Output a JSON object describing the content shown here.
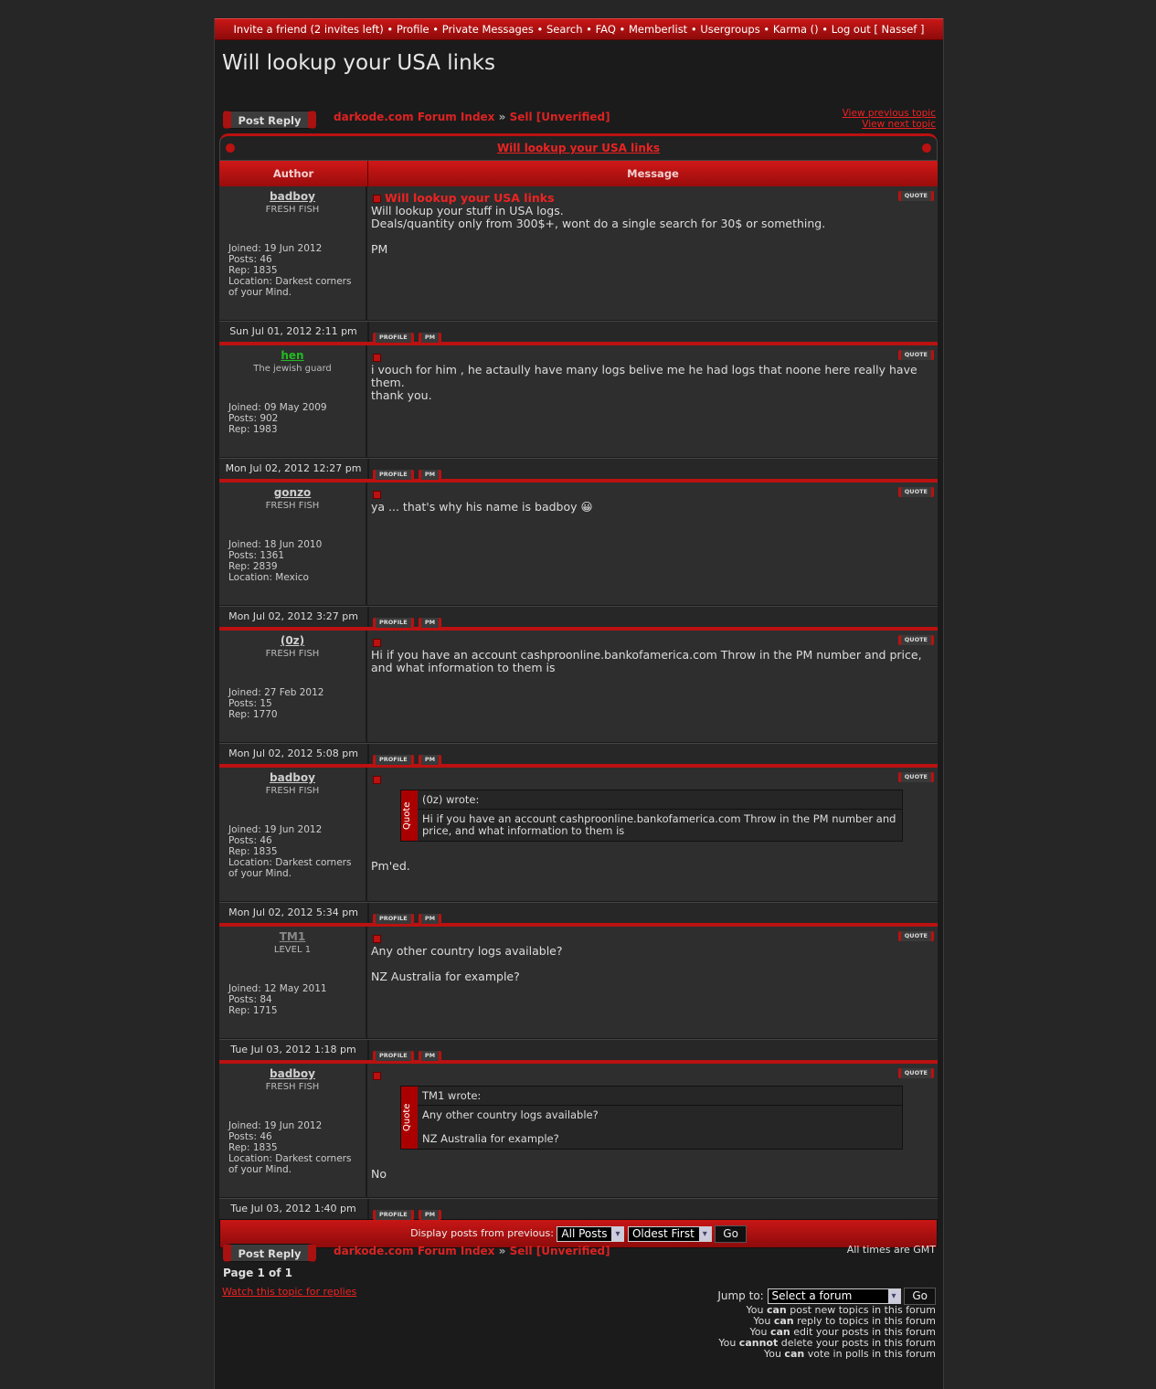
{
  "nav": {
    "items": [
      "Invite a friend (2 invites left)",
      "Profile",
      "Private Messages",
      "Search",
      "FAQ",
      "Memberlist",
      "Usergroups",
      "Karma ()",
      "Log out [ Nassef ]"
    ]
  },
  "page_title": "Will lookup your USA links",
  "post_reply": "Post Reply",
  "breadcrumb": {
    "index": "darkode.com Forum Index",
    "sep": "»",
    "forum": "Sell [Unverified]"
  },
  "view_previous": "View previous topic",
  "view_next": "View next topic",
  "topic_title": "Will lookup your USA links",
  "headers": {
    "author": "Author",
    "message": "Message"
  },
  "buttons": {
    "quote": "QUOTE",
    "profile": "PROFILE",
    "pm": "PM"
  },
  "colors": {
    "accent": "#cc1111",
    "username": "#cfcfcf",
    "hen": "#22bb22",
    "tm1": "#888888"
  },
  "posts": [
    {
      "author": "badboy",
      "color": "#cfcfcf",
      "rank": "FRESH FISH",
      "info": [
        "Joined: 19 Jun 2012",
        "Posts: 46",
        "Rep: 1835",
        "Location: Darkest corners",
        "of your Mind."
      ],
      "date": "Sun Jul 01, 2012 2:11 pm",
      "subject": "Will lookup your USA links",
      "body": [
        "Will lookup your stuff in USA logs.",
        "Deals/quantity only from 300$+, wont do a single search for 30$ or something.",
        "",
        "PM"
      ]
    },
    {
      "author": "hen",
      "color": "#22bb22",
      "rank": "The jewish guard",
      "info": [
        "Joined: 09 May 2009",
        "Posts: 902",
        "Rep: 1983"
      ],
      "date": "Mon Jul 02, 2012 12:27 pm",
      "body": [
        "i vouch for him , he actaully have many logs belive me he had logs that noone here really have them.",
        "thank you."
      ]
    },
    {
      "author": "gonzo",
      "color": "#cfcfcf",
      "rank": "FRESH FISH",
      "info": [
        "Joined: 18 Jun 2010",
        "Posts: 1361",
        "Rep: 2839",
        "Location: Mexico"
      ],
      "date": "Mon Jul 02, 2012 3:27 pm",
      "body": [
        "ya ... that's why his name is badboy 😀"
      ]
    },
    {
      "author": "(0z)",
      "color": "#cfcfcf",
      "rank": "FRESH FISH",
      "info": [
        "Joined: 27 Feb 2012",
        "Posts: 15",
        "Rep: 1770"
      ],
      "date": "Mon Jul 02, 2012 5:08 pm",
      "body": [
        "Hi if you have an account cashproonline.bankofamerica.com Throw in the PM number and price, and what information to them is"
      ]
    },
    {
      "author": "badboy",
      "color": "#cfcfcf",
      "rank": "FRESH FISH",
      "info": [
        "Joined: 19 Jun 2012",
        "Posts: 46",
        "Rep: 1835",
        "Location: Darkest corners",
        "of your Mind."
      ],
      "date": "Mon Jul 02, 2012 5:34 pm",
      "quote": {
        "label": "Quote",
        "head": "(0z) wrote:",
        "text": [
          "Hi if you have an account cashproonline.bankofamerica.com Throw in the PM number and price, and what information to them is"
        ]
      },
      "body": [
        "",
        "Pm'ed."
      ]
    },
    {
      "author": "TM1",
      "color": "#888888",
      "rank": "LEVEL 1",
      "info": [
        "Joined: 12 May 2011",
        "Posts: 84",
        "Rep: 1715"
      ],
      "date": "Tue Jul 03, 2012 1:18 pm",
      "body": [
        "Any other country logs available?",
        "",
        "NZ Australia for example?"
      ]
    },
    {
      "author": "badboy",
      "color": "#cfcfcf",
      "rank": "FRESH FISH",
      "info": [
        "Joined: 19 Jun 2012",
        "Posts: 46",
        "Rep: 1835",
        "Location: Darkest corners",
        "of your Mind."
      ],
      "date": "Tue Jul 03, 2012 1:40 pm",
      "quote": {
        "label": "Quote",
        "head": "TM1 wrote:",
        "text": [
          "Any other country logs available?",
          "",
          "NZ Australia for example?"
        ]
      },
      "body": [
        "",
        "No"
      ]
    }
  ],
  "display": {
    "label": "Display posts from previous:",
    "period": "All Posts",
    "order": "Oldest First",
    "go": "Go"
  },
  "times": "All times are GMT",
  "page": "Page 1 of 1",
  "watch": "Watch this topic for replies",
  "jump": {
    "label": "Jump to:",
    "value": "Select a forum",
    "go": "Go"
  },
  "permissions": [
    {
      "pre": "You ",
      "b": "can",
      "post": " post new topics in this forum"
    },
    {
      "pre": "You ",
      "b": "can",
      "post": " reply to topics in this forum"
    },
    {
      "pre": "You ",
      "b": "can",
      "post": " edit your posts in this forum"
    },
    {
      "pre": "You ",
      "b": "cannot",
      "post": " delete your posts in this forum"
    },
    {
      "pre": "You ",
      "b": "can",
      "post": " vote in polls in this forum"
    }
  ]
}
